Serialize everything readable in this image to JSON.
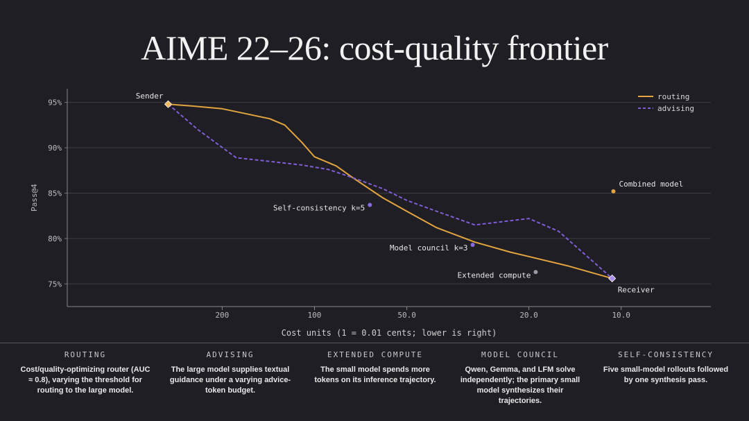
{
  "title": "AIME 22–26: cost-quality frontier",
  "chart_data": {
    "type": "line",
    "xlabel": "Cost units (1 = 0.01 cents; lower is right)",
    "ylabel": "Pass@4",
    "x_scale": "log, reversed",
    "xlim": [
      640,
      5.1
    ],
    "ylim": [
      72.5,
      96.5
    ],
    "x_ticks": [
      200,
      100,
      50,
      20,
      10
    ],
    "x_tick_labels": [
      "200",
      "100",
      "50.0",
      "20.0",
      "10.0"
    ],
    "y_ticks": [
      75,
      80,
      85,
      90,
      95
    ],
    "y_tick_labels": [
      "75%",
      "80%",
      "85%",
      "90%",
      "95%"
    ],
    "grid": "horizontal",
    "legend": "top-right",
    "series": [
      {
        "name": "routing",
        "color": "#e3a53f",
        "style": "solid",
        "points": [
          [
            300,
            94.8
          ],
          [
            250,
            94.6
          ],
          [
            200,
            94.3
          ],
          [
            170,
            93.8
          ],
          [
            140,
            93.2
          ],
          [
            125,
            92.5
          ],
          [
            110,
            90.6
          ],
          [
            100,
            89.0
          ],
          [
            85,
            88.0
          ],
          [
            75,
            86.7
          ],
          [
            60,
            84.5
          ],
          [
            50,
            83.0
          ],
          [
            40,
            81.2
          ],
          [
            30,
            79.6
          ],
          [
            23,
            78.5
          ],
          [
            15,
            77.0
          ],
          [
            10.7,
            75.6
          ]
        ]
      },
      {
        "name": "advising",
        "color": "#7f5fd6",
        "style": "dashed",
        "points": [
          [
            300,
            94.8
          ],
          [
            240,
            92.0
          ],
          [
            180,
            88.9
          ],
          [
            140,
            88.5
          ],
          [
            110,
            88.1
          ],
          [
            90,
            87.6
          ],
          [
            75,
            86.7
          ],
          [
            60,
            85.5
          ],
          [
            50,
            84.2
          ],
          [
            40,
            83.0
          ],
          [
            30,
            81.5
          ],
          [
            20,
            82.2
          ],
          [
            16,
            80.8
          ],
          [
            10.7,
            75.6
          ]
        ]
      }
    ],
    "points": [
      {
        "label": "Sender",
        "x": 300,
        "y": 94.8,
        "color": "#f0b960",
        "marker": "diamond",
        "label_pos": "left-above"
      },
      {
        "label": "Receiver",
        "x": 10.7,
        "y": 75.6,
        "color": "#a98ef0",
        "marker": "diamond",
        "label_pos": "right-below"
      },
      {
        "label": "Combined model",
        "x": 10.6,
        "y": 85.2,
        "color": "#e3a53f",
        "marker": "dot",
        "label_pos": "right-above"
      },
      {
        "label": "Self-consistency k=5",
        "x": 66,
        "y": 83.7,
        "color": "#8a6ae0",
        "marker": "dot",
        "label_pos": "left-below"
      },
      {
        "label": "Model council k=3",
        "x": 30.5,
        "y": 79.3,
        "color": "#8a6ae0",
        "marker": "dot",
        "label_pos": "left-below"
      },
      {
        "label": "Extended compute",
        "x": 19,
        "y": 76.3,
        "color": "#9a9aa6",
        "marker": "dot",
        "label_pos": "left-below"
      }
    ]
  },
  "footer": [
    {
      "heading": "ROUTING",
      "text": "Cost/quality-optimizing router (AUC ≈ 0.8), varying the threshold for routing to the large model."
    },
    {
      "heading": "ADVISING",
      "text": "The large model supplies textual guidance under a varying advice-token budget."
    },
    {
      "heading": "EXTENDED COMPUTE",
      "text": "The small model spends more tokens on its inference trajectory."
    },
    {
      "heading": "MODEL COUNCIL",
      "text": "Qwen, Gemma, and LFM solve independently; the primary small model synthesizes their trajectories."
    },
    {
      "heading": "SELF-CONSISTENCY",
      "text": "Five small-model rollouts followed by one synthesis pass."
    }
  ]
}
